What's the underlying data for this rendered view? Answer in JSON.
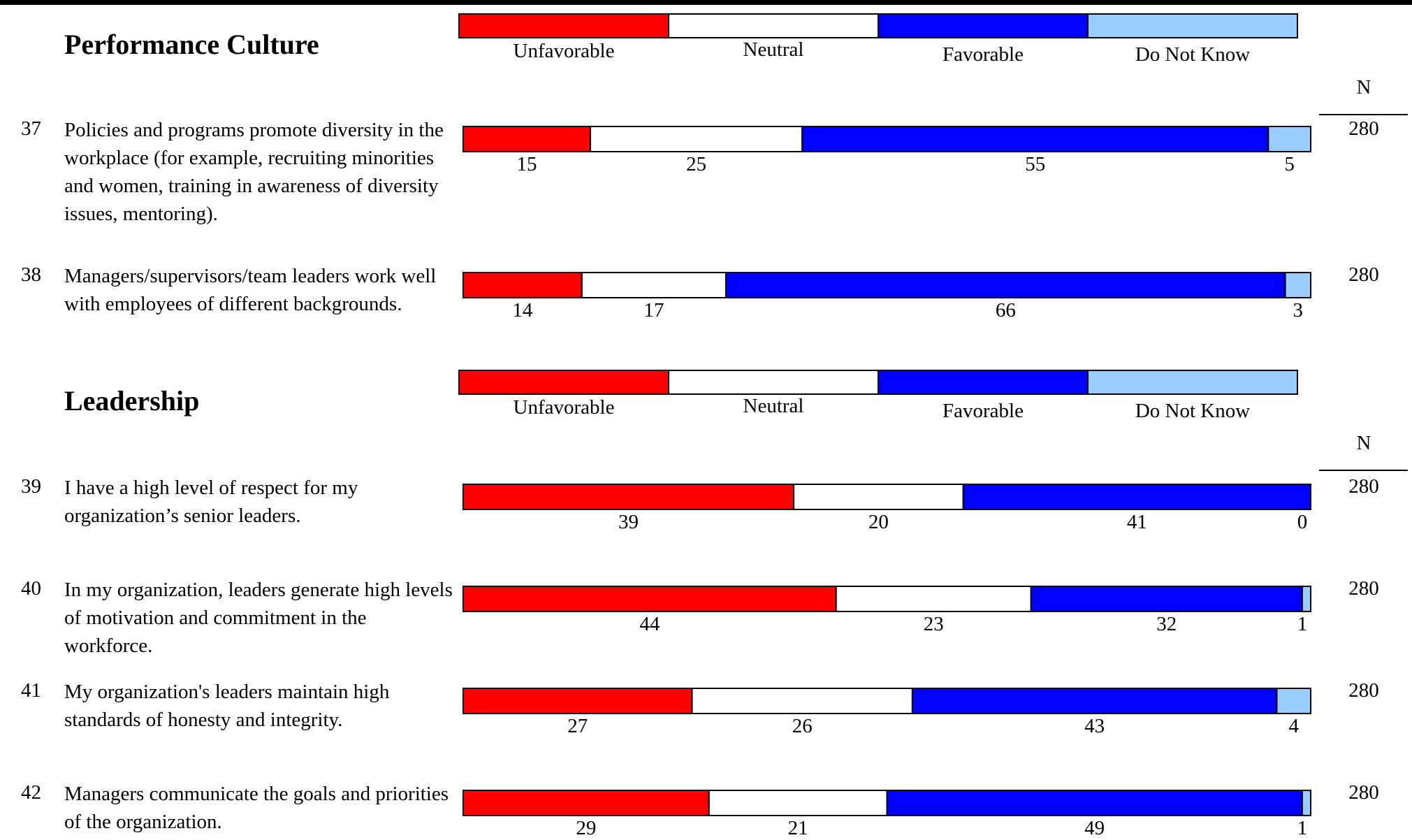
{
  "colors": {
    "unfavorable": "#ff0000",
    "neutral": "#ffffff",
    "favorable": "#0000ff",
    "do_not_know": "#99ccff"
  },
  "n_header": "N",
  "sections": [
    {
      "title": "Performance Culture",
      "legend": [
        "Unfavorable",
        "Neutral",
        "Favorable",
        "Do Not Know"
      ],
      "questions": [
        {
          "number": "37",
          "text": "Policies and programs promote diversity in the workplace (for example, recruiting minorities and women, training in awareness of diversity issues, mentoring).",
          "values": [
            15,
            25,
            55,
            5
          ],
          "labels": [
            "15",
            "25",
            "55",
            "5"
          ],
          "n": "280"
        },
        {
          "number": "38",
          "text": "Managers/supervisors/team leaders work well with employees of different backgrounds.",
          "values": [
            14,
            17,
            66,
            3
          ],
          "labels": [
            "14",
            "17",
            "66",
            "3"
          ],
          "n": "280"
        }
      ]
    },
    {
      "title": "Leadership",
      "legend": [
        "Unfavorable",
        "Neutral",
        "Favorable",
        "Do Not Know"
      ],
      "questions": [
        {
          "number": "39",
          "text": "I have a high level of respect for my organization’s senior leaders.",
          "values": [
            39,
            20,
            41,
            0
          ],
          "labels": [
            "39",
            "20",
            "41",
            "0"
          ],
          "n": "280"
        },
        {
          "number": "40",
          "text": "In my organization, leaders generate high levels of motivation and commitment in the workforce.",
          "values": [
            44,
            23,
            32,
            1
          ],
          "labels": [
            "44",
            "23",
            "32",
            "1"
          ],
          "n": "280"
        },
        {
          "number": "41",
          "text": "My organization's leaders maintain high standards of honesty and integrity.",
          "values": [
            27,
            26,
            43,
            4
          ],
          "labels": [
            "27",
            "26",
            "43",
            "4"
          ],
          "n": "280"
        },
        {
          "number": "42",
          "text": "Managers communicate the goals and priorities of the organization.",
          "values": [
            29,
            21,
            49,
            1
          ],
          "labels": [
            "29",
            "21",
            "49",
            "1"
          ],
          "n": "280"
        }
      ]
    }
  ],
  "chart_data": {
    "type": "bar",
    "stacked": true,
    "orientation": "horizontal",
    "series_names": [
      "Unfavorable",
      "Neutral",
      "Favorable",
      "Do Not Know"
    ],
    "categories": [
      "37",
      "38",
      "39",
      "40",
      "41",
      "42"
    ],
    "series": [
      {
        "name": "Unfavorable",
        "values": [
          15,
          14,
          39,
          44,
          27,
          29
        ]
      },
      {
        "name": "Neutral",
        "values": [
          25,
          17,
          20,
          23,
          26,
          21
        ]
      },
      {
        "name": "Favorable",
        "values": [
          55,
          66,
          41,
          32,
          43,
          49
        ]
      },
      {
        "name": "Do Not Know",
        "values": [
          5,
          3,
          0,
          1,
          4,
          1
        ]
      }
    ],
    "n": [
      280,
      280,
      280,
      280,
      280,
      280
    ],
    "xlim": [
      0,
      100
    ]
  }
}
